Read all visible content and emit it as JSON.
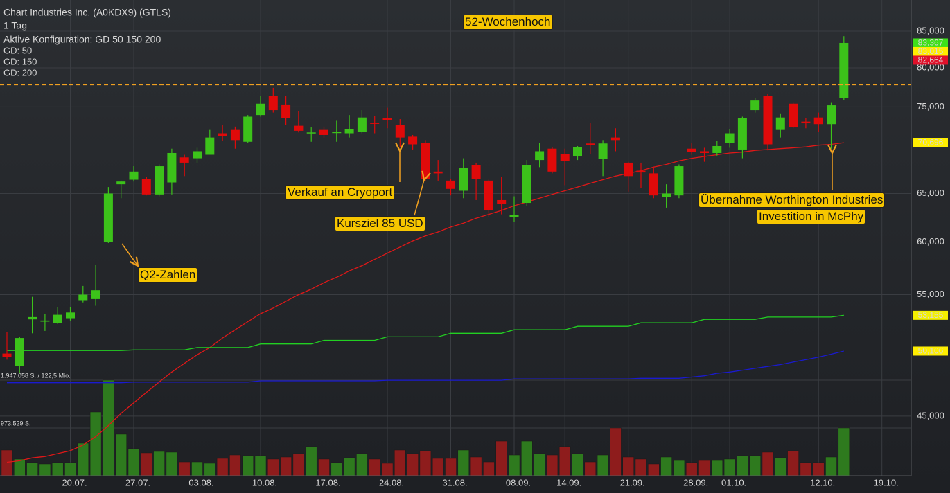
{
  "chart_data": {
    "type": "candlestick",
    "title": "Chart Industries Inc. (A0KDX9) (GTLS)",
    "subtitle": "1 Tag",
    "config": "Aktive Konfiguration: GD 50 150 200",
    "log_scale": true,
    "grid": true,
    "up_color": "#3cc21a",
    "down_color": "#e00a0a",
    "volume_up_color": "#2e7a1e",
    "volume_down_color": "#8e1c1c",
    "categories": [
      null,
      null,
      null,
      null,
      null,
      "20.07.",
      null,
      null,
      null,
      null,
      "27.07.",
      null,
      null,
      null,
      null,
      "03.08.",
      null,
      null,
      null,
      null,
      "10.08.",
      null,
      null,
      null,
      null,
      "17.08.",
      null,
      null,
      null,
      null,
      "24.08.",
      null,
      null,
      null,
      null,
      "31.08.",
      null,
      null,
      null,
      null,
      "08.09.",
      null,
      null,
      null,
      "14.09.",
      null,
      null,
      null,
      null,
      "21.09.",
      null,
      null,
      null,
      null,
      "28.09.",
      null,
      null,
      "01.10.",
      null,
      null,
      null,
      null,
      null,
      null,
      "12.10.",
      null,
      null,
      null,
      null,
      "19.10."
    ],
    "open": [
      49.9,
      48.9,
      52.8,
      52.6,
      52.5,
      52.9,
      54.5,
      54.6,
      60.0,
      66.0,
      66.5,
      66.6,
      64.9,
      66.2,
      69.0,
      68.9,
      69.3,
      71.8,
      72.2,
      70.8,
      74.0,
      76.4,
      75.3,
      72.7,
      71.8,
      72.2,
      71.85,
      71.8,
      72.0,
      73.05,
      73.6,
      72.8,
      71.4,
      70.7,
      67.4,
      66.4,
      65.3,
      68.1,
      66.4,
      64.3,
      62.5,
      64.0,
      68.7,
      70.0,
      69.4,
      69.1,
      70.6,
      68.8,
      71.3,
      68.4,
      67.5,
      67.2,
      64.6,
      64.8,
      70.0,
      69.7,
      69.5,
      70.7,
      69.9,
      74.6,
      76.4,
      72.2,
      75.4,
      73.2,
      73.7,
      72.9,
      76.1,
      null,
      null,
      null
    ],
    "high": [
      51.7,
      51.3,
      54.8,
      53.3,
      53.9,
      53.9,
      55.8,
      57.8,
      65.7,
      66.4,
      68.0,
      66.8,
      68.2,
      70.0,
      69.3,
      70.1,
      72.2,
      72.8,
      72.6,
      74.0,
      76.4,
      77.4,
      76.4,
      74.5,
      72.5,
      72.6,
      73.3,
      74.0,
      74.6,
      73.9,
      74.9,
      73.5,
      71.6,
      71.0,
      68.7,
      66.6,
      68.9,
      68.4,
      66.5,
      66.8,
      64.7,
      68.7,
      70.7,
      70.2,
      70.0,
      70.3,
      73.0,
      71.0,
      72.4,
      68.5,
      68.4,
      67.9,
      66.0,
      68.2,
      70.7,
      70.1,
      70.9,
      72.3,
      73.8,
      76.1,
      76.6,
      74.2,
      75.5,
      73.6,
      74.3,
      75.5,
      84.3,
      null,
      null,
      null
    ],
    "low": [
      49.4,
      48.3,
      51.6,
      51.8,
      52.4,
      52.7,
      54.3,
      54.0,
      59.9,
      64.5,
      66.3,
      64.8,
      64.7,
      64.9,
      66.9,
      68.4,
      69.3,
      70.9,
      70.0,
      70.7,
      73.8,
      74.3,
      72.8,
      71.9,
      70.8,
      71.2,
      70.8,
      71.3,
      71.8,
      71.8,
      72.4,
      70.2,
      69.9,
      66.4,
      66.4,
      64.8,
      64.5,
      64.3,
      62.5,
      62.8,
      62.0,
      63.7,
      67.9,
      67.2,
      65.9,
      68.7,
      69.4,
      66.9,
      69.7,
      65.2,
      65.6,
      64.5,
      63.5,
      64.5,
      69.3,
      68.5,
      69.2,
      70.1,
      68.9,
      74.3,
      69.8,
      71.3,
      72.4,
      72.4,
      72.0,
      70.0,
      75.9,
      null,
      null,
      null
    ],
    "close": [
      49.6,
      51.2,
      53.0,
      52.7,
      53.2,
      53.4,
      55.0,
      55.4,
      65.0,
      66.3,
      67.4,
      64.9,
      68.0,
      69.5,
      68.4,
      69.7,
      71.3,
      71.5,
      71.0,
      73.8,
      75.4,
      74.6,
      73.6,
      72.1,
      71.9,
      71.6,
      71.95,
      72.3,
      73.7,
      72.95,
      73.4,
      71.3,
      70.5,
      66.6,
      67.2,
      65.5,
      67.8,
      66.6,
      63.2,
      63.9,
      62.7,
      68.1,
      69.7,
      67.4,
      68.6,
      70.2,
      70.4,
      70.6,
      71.0,
      66.9,
      67.3,
      64.8,
      65.0,
      68.0,
      69.6,
      69.5,
      70.3,
      71.8,
      73.6,
      75.8,
      70.5,
      73.7,
      72.5,
      73.0,
      72.9,
      75.2,
      83.367,
      null,
      null,
      null
    ],
    "volume": [
      522000,
      339000,
      268000,
      240000,
      268000,
      268000,
      663000,
      1298000,
      1947058,
      847000,
      550000,
      466000,
      494000,
      480000,
      282000,
      282000,
      254000,
      353000,
      423000,
      409000,
      409000,
      339000,
      381000,
      451000,
      593000,
      339000,
      268000,
      367000,
      451000,
      339000,
      254000,
      522000,
      451000,
      508000,
      353000,
      353000,
      522000,
      381000,
      282000,
      705000,
      423000,
      705000,
      451000,
      423000,
      593000,
      451000,
      282000,
      423000,
      974000,
      381000,
      339000,
      240000,
      381000,
      310000,
      268000,
      310000,
      310000,
      339000,
      409000,
      409000,
      480000,
      367000,
      508000,
      268000,
      268000,
      381000,
      974000,
      null,
      null,
      null
    ],
    "series": [
      {
        "name": "GD: 50",
        "color": "#e01818",
        "values": [
          41.7,
          41.8,
          42.0,
          42.1,
          42.3,
          42.5,
          42.9,
          43.5,
          44.3,
          45.2,
          46.0,
          46.8,
          47.6,
          48.4,
          49.1,
          49.8,
          50.4,
          51.2,
          51.9,
          52.6,
          53.3,
          53.8,
          54.4,
          55.0,
          55.5,
          56.1,
          56.6,
          57.2,
          57.7,
          58.3,
          58.9,
          59.5,
          60.1,
          60.6,
          61.0,
          61.5,
          61.9,
          62.4,
          62.8,
          63.2,
          63.7,
          64.1,
          64.5,
          64.9,
          65.3,
          65.7,
          66.1,
          66.5,
          66.9,
          67.2,
          67.5,
          67.9,
          68.2,
          68.6,
          68.9,
          69.1,
          69.3,
          69.5,
          69.6,
          69.8,
          69.9,
          70.0,
          70.1,
          70.2,
          70.4,
          70.5,
          70.696,
          null,
          null,
          null
        ]
      },
      {
        "name": "GD: 150",
        "color": "#1a1ad0",
        "values": [
          47.55,
          47.55,
          47.55,
          47.55,
          47.55,
          47.55,
          47.55,
          47.55,
          47.55,
          47.55,
          47.6,
          47.6,
          47.6,
          47.6,
          47.6,
          47.6,
          47.6,
          47.6,
          47.6,
          47.6,
          47.7,
          47.7,
          47.7,
          47.7,
          47.7,
          47.7,
          47.7,
          47.7,
          47.7,
          47.7,
          47.75,
          47.75,
          47.75,
          47.75,
          47.75,
          47.75,
          47.75,
          47.75,
          47.75,
          47.75,
          47.85,
          47.85,
          47.85,
          47.85,
          47.85,
          47.85,
          47.85,
          47.85,
          47.85,
          47.85,
          47.9,
          47.9,
          47.9,
          47.9,
          48.0,
          48.1,
          48.3,
          48.4,
          48.55,
          48.7,
          48.85,
          49.0,
          49.2,
          49.4,
          49.6,
          49.85,
          50.106,
          null,
          null,
          null
        ]
      },
      {
        "name": "GD: 200",
        "color": "#22d022",
        "values": [
          50.15,
          50.15,
          50.15,
          50.15,
          50.15,
          50.15,
          50.15,
          50.15,
          50.15,
          50.15,
          50.2,
          50.2,
          50.2,
          50.2,
          50.2,
          50.4,
          50.4,
          50.4,
          50.4,
          50.4,
          50.7,
          50.7,
          50.7,
          50.7,
          50.7,
          51.0,
          51.0,
          51.0,
          51.0,
          51.0,
          51.3,
          51.3,
          51.3,
          51.3,
          51.3,
          51.6,
          51.6,
          51.6,
          51.6,
          51.6,
          51.9,
          51.9,
          51.9,
          51.9,
          51.9,
          52.2,
          52.2,
          52.2,
          52.2,
          52.2,
          52.5,
          52.5,
          52.5,
          52.5,
          52.5,
          52.8,
          52.8,
          52.8,
          52.8,
          52.8,
          53.0,
          53.0,
          53.0,
          53.0,
          53.0,
          53.0,
          53.155,
          null,
          null,
          null
        ]
      }
    ],
    "ylim": [
      40.78,
      89.49
    ],
    "yticks": [
      {
        "value": 45,
        "label": "45,000"
      },
      {
        "value": 55,
        "label": "55,000"
      },
      {
        "value": 60,
        "label": "60,000"
      },
      {
        "value": 65,
        "label": "65,000"
      },
      {
        "value": 75,
        "label": "75,000"
      },
      {
        "value": 80,
        "label": "80,000"
      },
      {
        "value": 85,
        "label": "85,000"
      }
    ],
    "y2lim": [
      0,
      9693000
    ],
    "y2ticks": [
      {
        "value": 1947058,
        "label": "1.947.058 S. / 122,5 Mio."
      },
      {
        "value": 973529,
        "label": "973.529 S."
      }
    ],
    "high_line": 77.8,
    "price_labels": [
      {
        "value": 83.367,
        "label": "83,367",
        "color": "#3ee01a"
      },
      {
        "value": 83.015,
        "label": "83,015",
        "color": "#ffee00"
      },
      {
        "value": 82.664,
        "label": "82,664",
        "color": "#e0102a"
      },
      {
        "value": 70.696,
        "label": "70,696",
        "color": "#ffee00"
      },
      {
        "value": 53.155,
        "label": "53,155",
        "color": "#f4f000"
      },
      {
        "value": 50.106,
        "label": "50,106",
        "color": "#ffee00"
      }
    ],
    "annotations": [
      "52-Wochenhoch",
      "Q2-Zahlen",
      "Verkauf an Cryoport",
      "Kursziel 85 USD",
      "Übernahme Worthington Industries",
      "Investition in McPhy"
    ]
  }
}
